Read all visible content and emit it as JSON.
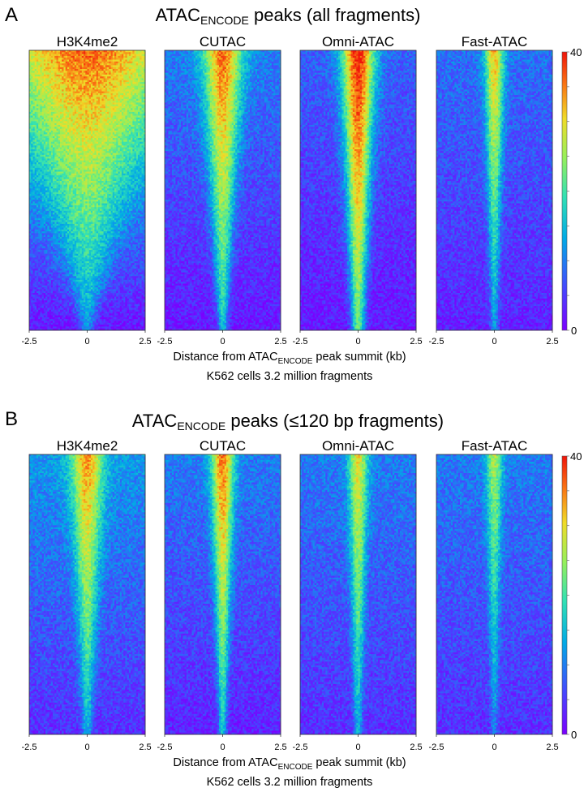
{
  "chart_data": [
    {
      "type": "heatmap",
      "panel_label": "A",
      "title_main": "ATAC",
      "title_sub": "ENCODE",
      "title_rest": " peaks (all fragments)",
      "xlabel_main": "Distance from ATAC",
      "xlabel_sub": "ENCODE",
      "xlabel_rest": " peak summit (kb)",
      "caption": "K562 cells 3.2 million fragments",
      "xlim": [
        -2.5,
        2.5
      ],
      "x_ticks": [
        "-2.5",
        "0",
        "2.5"
      ],
      "colorbar": {
        "min": 0,
        "max": 40,
        "min_label": "0",
        "max_label": "40",
        "colormap": "rainbow (violet-blue-cyan-green-yellow-red)"
      },
      "series": [
        {
          "name": "H3K4me2",
          "summit_signal_top": 36,
          "summit_signal_bottom": 12,
          "background_top": 20,
          "background_bottom": 2,
          "profile_width_top_kb": 2.2,
          "profile_width_bottom_kb": 0.2
        },
        {
          "name": "CUTAC",
          "summit_signal_top": 36,
          "summit_signal_bottom": 16,
          "background_top": 10,
          "background_bottom": 2,
          "profile_width_top_kb": 0.6,
          "profile_width_bottom_kb": 0.15
        },
        {
          "name": "Omni-ATAC",
          "summit_signal_top": 40,
          "summit_signal_bottom": 22,
          "background_top": 8,
          "background_bottom": 2,
          "profile_width_top_kb": 0.5,
          "profile_width_bottom_kb": 0.2
        },
        {
          "name": "Fast-ATAC",
          "summit_signal_top": 32,
          "summit_signal_bottom": 12,
          "background_top": 9,
          "background_bottom": 3,
          "profile_width_top_kb": 0.3,
          "profile_width_bottom_kb": 0.12
        }
      ]
    },
    {
      "type": "heatmap",
      "panel_label": "B",
      "title_main": "ATAC",
      "title_sub": "ENCODE",
      "title_rest": " peaks (≤120 bp fragments)",
      "xlabel_main": "Distance from ATAC",
      "xlabel_sub": "ENCODE",
      "xlabel_rest": " peak summit (kb)",
      "caption": "K562 cells 3.2 million fragments",
      "xlim": [
        -2.5,
        2.5
      ],
      "x_ticks": [
        "-2.5",
        "0",
        "2.5"
      ],
      "colorbar": {
        "min": 0,
        "max": 40,
        "min_label": "0",
        "max_label": "40",
        "colormap": "rainbow (violet-blue-cyan-green-yellow-red)"
      },
      "series": [
        {
          "name": "H3K4me2",
          "summit_signal_top": 34,
          "summit_signal_bottom": 14,
          "background_top": 12,
          "background_bottom": 4,
          "profile_width_top_kb": 0.5,
          "profile_width_bottom_kb": 0.15
        },
        {
          "name": "CUTAC",
          "summit_signal_top": 36,
          "summit_signal_bottom": 16,
          "background_top": 10,
          "background_bottom": 3,
          "profile_width_top_kb": 0.35,
          "profile_width_bottom_kb": 0.12
        },
        {
          "name": "Omni-ATAC",
          "summit_signal_top": 30,
          "summit_signal_bottom": 14,
          "background_top": 10,
          "background_bottom": 4,
          "profile_width_top_kb": 0.3,
          "profile_width_bottom_kb": 0.12
        },
        {
          "name": "Fast-ATAC",
          "summit_signal_top": 26,
          "summit_signal_bottom": 10,
          "background_top": 10,
          "background_bottom": 4,
          "profile_width_top_kb": 0.25,
          "profile_width_bottom_kb": 0.1
        }
      ]
    }
  ]
}
